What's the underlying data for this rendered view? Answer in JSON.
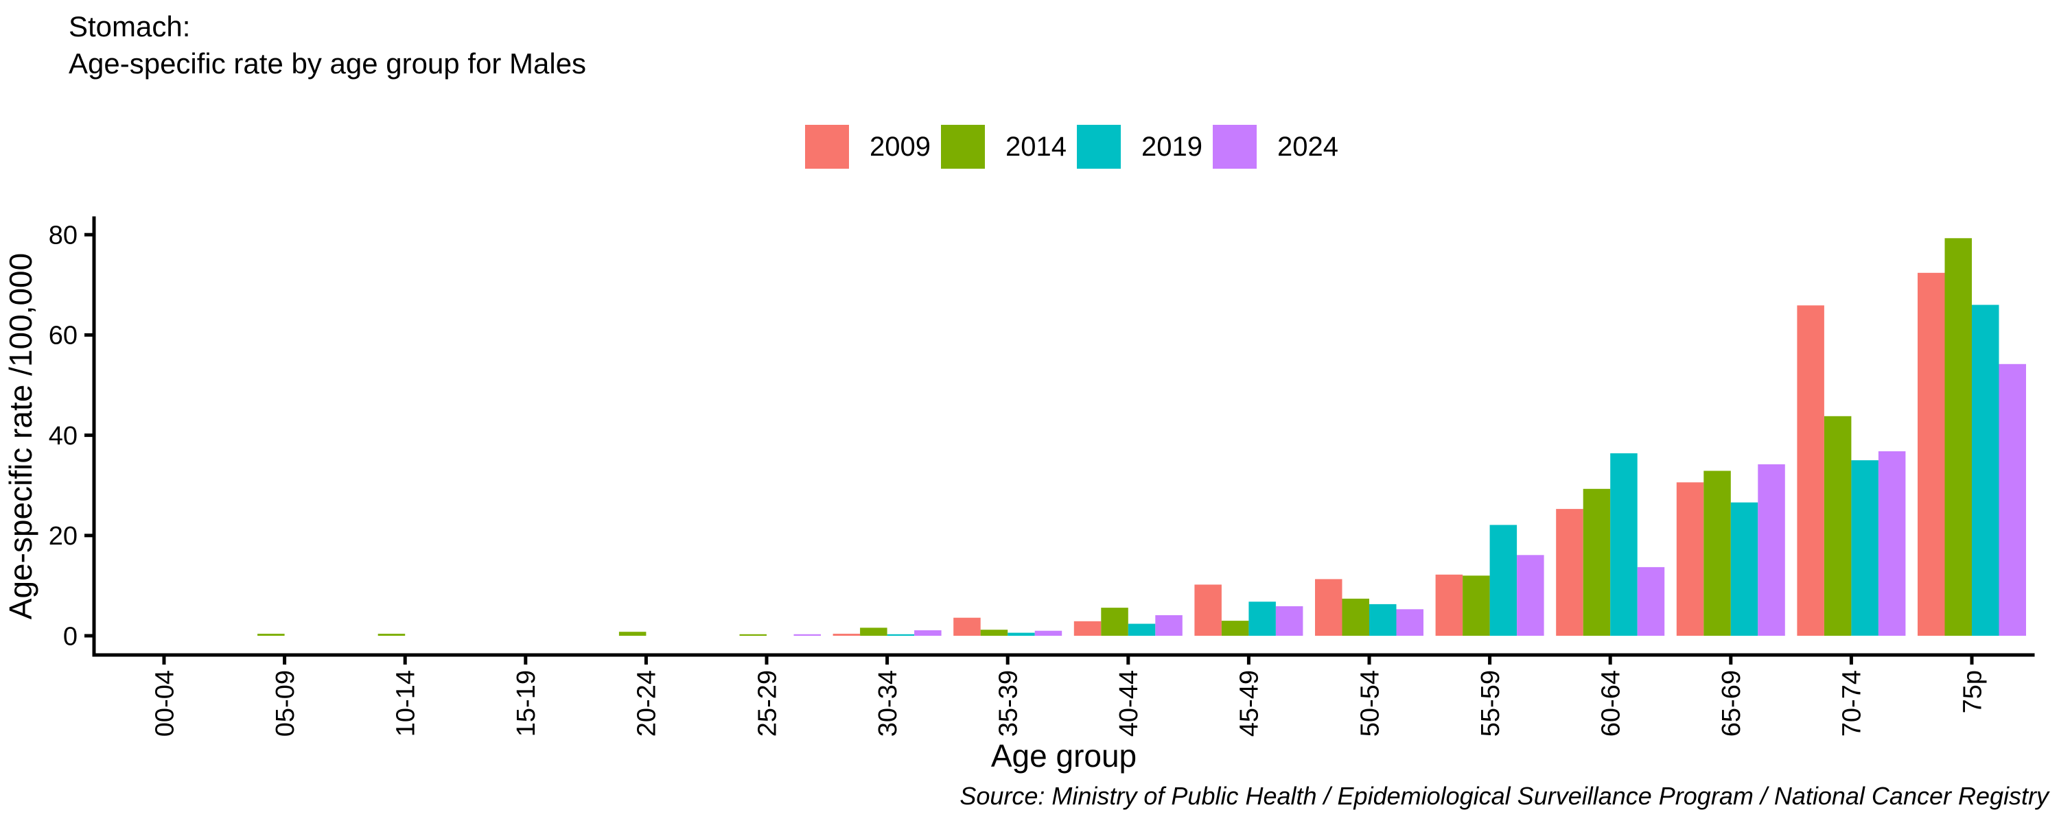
{
  "title": {
    "line1": "Stomach:",
    "line2": "Age-specific rate by age group for Males"
  },
  "source": "Source: Ministry of Public Health / Epidemiological Surveillance Program / National Cancer Registry",
  "chart_data": {
    "type": "bar",
    "title": "Stomach: Age-specific rate by age group for Males",
    "xlabel": "Age group",
    "ylabel": "Age-specific rate /100,000",
    "ylim": [
      0,
      83
    ],
    "yticks": [
      0,
      20,
      40,
      60,
      80
    ],
    "grid": false,
    "legend_position": "top-center",
    "background": "#FFFFFF",
    "axis_color": "#000000",
    "categories": [
      "00-04",
      "05-09",
      "10-14",
      "15-19",
      "20-24",
      "25-29",
      "30-34",
      "35-39",
      "40-44",
      "45-49",
      "50-54",
      "55-59",
      "60-64",
      "65-69",
      "70-74",
      "75p"
    ],
    "series": [
      {
        "name": "2009",
        "color": "#F8766D",
        "values": [
          0,
          0,
          0,
          0,
          0,
          0,
          0.4,
          3.6,
          2.9,
          10.2,
          11.3,
          12.2,
          25.3,
          30.6,
          65.9,
          72.4
        ]
      },
      {
        "name": "2014",
        "color": "#7CAE00",
        "values": [
          0,
          0.4,
          0.4,
          0,
          0.8,
          0.3,
          1.6,
          1.2,
          5.6,
          3.0,
          7.4,
          12.0,
          29.3,
          32.9,
          43.8,
          79.3
        ]
      },
      {
        "name": "2019",
        "color": "#00BFC4",
        "values": [
          0,
          0,
          0,
          0,
          0,
          0,
          0.3,
          0.6,
          2.4,
          6.8,
          6.3,
          22.1,
          36.4,
          26.6,
          35.0,
          66.0
        ]
      },
      {
        "name": "2024",
        "color": "#C77CFF",
        "values": [
          0,
          0,
          0,
          0,
          0,
          0.3,
          1.1,
          1.0,
          4.1,
          5.9,
          5.3,
          16.1,
          13.7,
          34.2,
          36.8,
          54.2
        ]
      }
    ]
  }
}
